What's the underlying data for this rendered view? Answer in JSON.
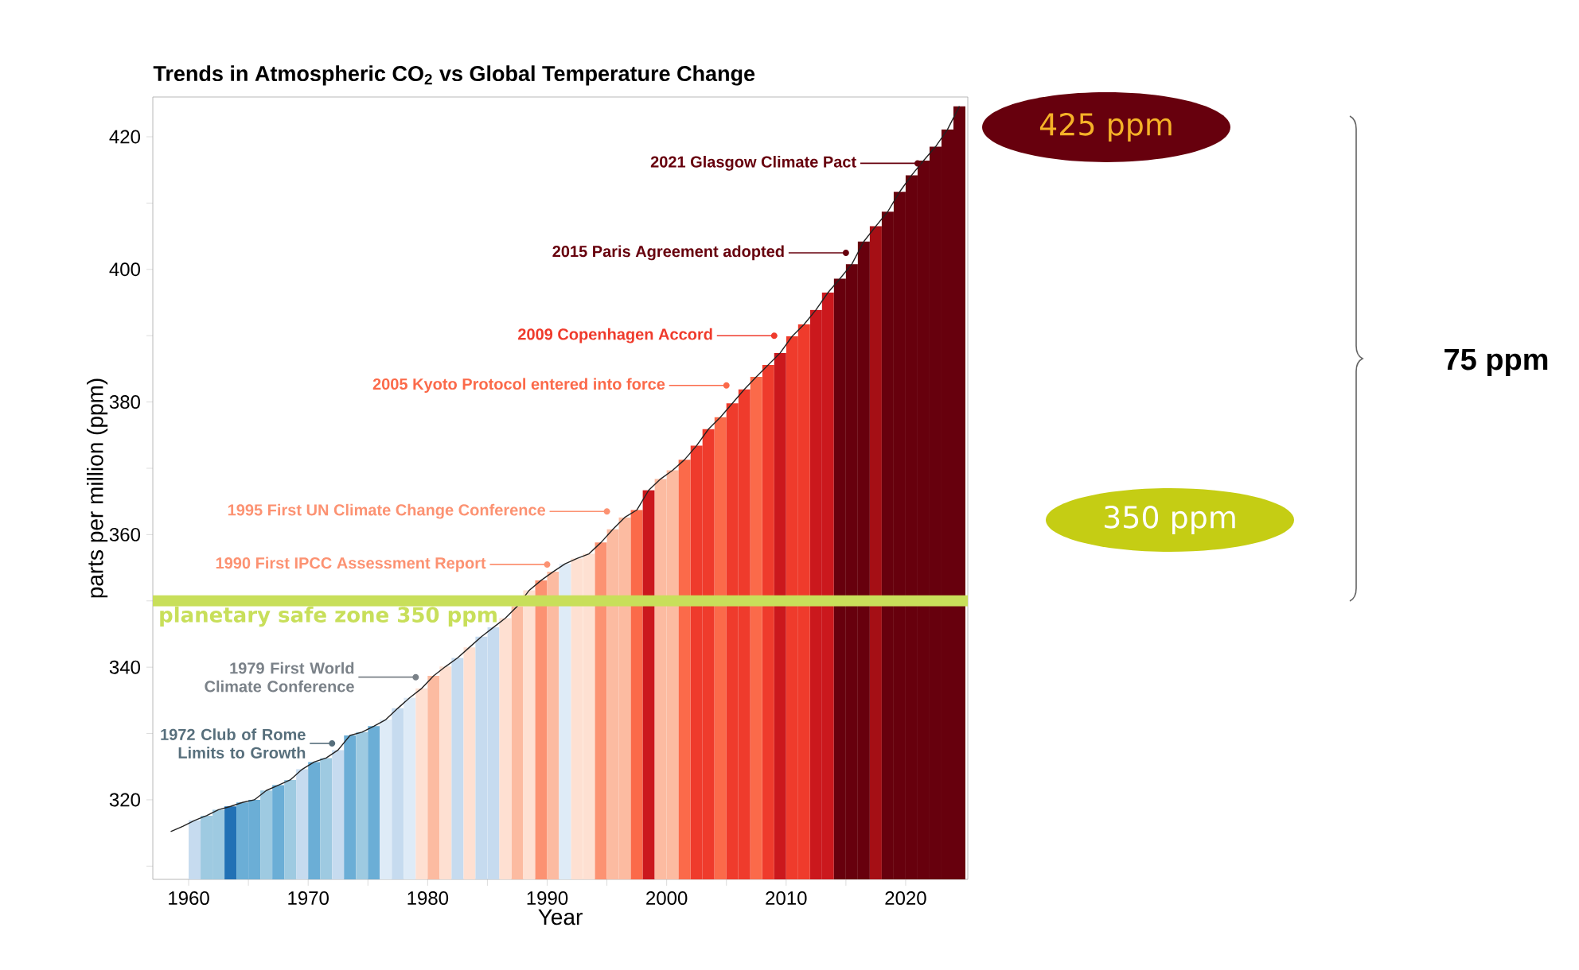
{
  "chart_data": {
    "type": "bar",
    "title": "Trends in Atmospheric CO$_{2}$ vs Global Temperature Change",
    "xlabel": "Year",
    "ylabel": "parts per million (ppm)",
    "xlim": [
      1957,
      2025.2
    ],
    "ylim": [
      308,
      426
    ],
    "xticks": [
      1960,
      {
        "value": 1965,
        "label": null
      },
      1970,
      {
        "value": 1975,
        "label": null
      },
      1980,
      {
        "value": 1985,
        "label": null
      },
      1990,
      {
        "value": 1995,
        "label": null
      },
      2000,
      {
        "value": 2005,
        "label": null
      },
      2010,
      {
        "value": 2015,
        "label": null
      },
      2020
    ],
    "yticks": [
      {
        "value": 310,
        "label": null
      },
      320,
      {
        "value": 330,
        "label": null
      },
      340,
      {
        "value": 350,
        "label": null
      },
      360,
      {
        "value": 370,
        "label": null
      },
      380,
      {
        "value": 390,
        "label": null
      },
      400,
      {
        "value": 410,
        "label": null
      },
      420
    ],
    "series": [
      {
        "x": [
          1960.5,
          1961.5,
          1962.5,
          1963.5,
          1964.5,
          1965.5,
          1966.5,
          1967.5,
          1968.5,
          1969.5,
          1970.5,
          1971.5,
          1972.5,
          1973.5,
          1974.5,
          1975.5,
          1976.5,
          1977.5,
          1978.5,
          1979.5,
          1980.5,
          1981.5,
          1982.5,
          1983.5,
          1984.5,
          1985.5,
          1986.5,
          1987.5,
          1988.5,
          1989.5,
          1990.5,
          1991.5,
          1992.5,
          1993.5,
          1994.5,
          1995.5,
          1996.5,
          1997.5,
          1998.5,
          1999.5,
          2000.5,
          2001.5,
          2002.5,
          2003.5,
          2004.5,
          2005.5,
          2006.5,
          2007.5,
          2008.5,
          2009.5,
          2010.5,
          2011.5,
          2012.5,
          2013.5,
          2014.5,
          2015.5,
          2016.5,
          2017.5,
          2018.5,
          2019.5,
          2020.5,
          2021.5,
          2022.5,
          2023.5,
          2024.5
        ],
        "values": [
          316.9,
          317.6,
          318.5,
          319.0,
          319.6,
          320.0,
          321.4,
          322.2,
          323.0,
          324.6,
          325.7,
          326.3,
          327.5,
          329.7,
          330.2,
          331.1,
          332.1,
          333.8,
          335.4,
          336.8,
          338.7,
          340.1,
          341.4,
          343.0,
          344.6,
          346.0,
          347.4,
          349.2,
          351.6,
          353.1,
          354.4,
          355.6,
          356.4,
          357.1,
          358.8,
          360.8,
          362.6,
          363.7,
          366.7,
          368.4,
          369.7,
          371.3,
          373.4,
          375.9,
          377.7,
          379.8,
          381.9,
          383.8,
          385.6,
          387.4,
          389.9,
          391.7,
          393.9,
          396.5,
          398.6,
          400.8,
          404.2,
          406.5,
          408.7,
          411.7,
          414.2,
          416.4,
          418.5,
          421.1,
          424.6
        ],
        "colors": [
          "#c6dbef",
          "#9ecae1",
          "#9ecae1",
          "#2171b5",
          "#6baed6",
          "#6baed6",
          "#9ecae1",
          "#6baed6",
          "#9ecae1",
          "#c6dbef",
          "#6baed6",
          "#9ecae1",
          "#c6dbef",
          "#6baed6",
          "#9ecae1",
          "#6baed6",
          "#deebf7",
          "#c6dbef",
          "#deebf7",
          "#fee0d2",
          "#fcbba1",
          "#fee0d2",
          "#c6dbef",
          "#fee0d2",
          "#c6dbef",
          "#c6dbef",
          "#fee0d2",
          "#fcbba1",
          "#fee0d2",
          "#fc9272",
          "#fcbba1",
          "#deebf7",
          "#fee0d2",
          "#fee0d2",
          "#fc9272",
          "#fcbba1",
          "#fcbba1",
          "#fb6a4a",
          "#cb181d",
          "#fcbba1",
          "#fcbba1",
          "#fb6a4a",
          "#ef3b2c",
          "#ef3b2c",
          "#fb6a4a",
          "#ef3b2c",
          "#ef3b2c",
          "#fb6a4a",
          "#ef3b2c",
          "#cb181d",
          "#ef3b2c",
          "#ef3b2c",
          "#cb181d",
          "#cb181d",
          "#67000d",
          "#67000d",
          "#67000d",
          "#a50f15",
          "#67000d",
          "#67000d",
          "#67000d",
          "#67000d",
          "#67000d",
          "#67000d",
          "#67000d"
        ]
      },
      {
        "type": "line",
        "color": "#222222",
        "marker": "none",
        "x": [
          1958.5,
          1959.5,
          1960.5,
          1961.5,
          1962.5,
          1963.5,
          1964.5,
          1965.5,
          1966.5,
          1967.5,
          1968.5,
          1969.5,
          1970.5,
          1971.5,
          1972.5,
          1973.5,
          1974.5,
          1975.5,
          1976.5,
          1977.5,
          1978.5,
          1979.5,
          1980.5,
          1981.5,
          1982.5,
          1983.5,
          1984.5,
          1985.5,
          1986.5,
          1987.5,
          1988.5,
          1989.5,
          1990.5,
          1991.5,
          1992.5,
          1993.5,
          1994.5,
          1995.5,
          1996.5,
          1997.5,
          1998.5,
          1999.5,
          2000.5,
          2001.5,
          2002.5,
          2003.5,
          2004.5,
          2005.5,
          2006.5,
          2007.5,
          2008.5,
          2009.5,
          2010.5,
          2011.5,
          2012.5,
          2013.5,
          2014.5,
          2015.5,
          2016.5,
          2017.5,
          2018.5,
          2019.5,
          2020.5,
          2021.5,
          2022.5,
          2023.5,
          2024.5
        ],
        "values": [
          315.2,
          316.0,
          316.9,
          317.6,
          318.5,
          319.0,
          319.6,
          320.0,
          321.4,
          322.2,
          323.0,
          324.6,
          325.7,
          326.3,
          327.5,
          329.7,
          330.2,
          331.1,
          332.1,
          333.8,
          335.4,
          336.8,
          338.7,
          340.1,
          341.4,
          343.0,
          344.6,
          346.0,
          347.4,
          349.2,
          351.6,
          353.1,
          354.4,
          355.6,
          356.4,
          357.1,
          358.8,
          360.8,
          362.6,
          363.7,
          366.7,
          368.4,
          369.7,
          371.3,
          373.4,
          375.9,
          377.7,
          379.8,
          381.9,
          383.8,
          385.6,
          387.4,
          389.9,
          391.7,
          393.9,
          396.5,
          398.6,
          400.8,
          404.2,
          406.5,
          408.7,
          411.7,
          414.2,
          416.4,
          418.5,
          421.1,
          424.6
        ]
      }
    ],
    "ref_lines": [
      {
        "axis": "y",
        "value": 350,
        "label": "planetary safe zone 350 ppm",
        "color": "#c8df5a"
      }
    ],
    "annotations": [
      {
        "text": "2021 Glasgow Climate Pact",
        "x": 2021,
        "y": 416
      },
      {
        "text": "2015 Paris Agreement adopted",
        "x": 2015,
        "y": 402.5
      },
      {
        "text": "2009 Copenhagen Accord",
        "x": 2009,
        "y": 390
      },
      {
        "text": "2005 Kyoto Protocol entered into force",
        "x": 2005,
        "y": 382.5
      },
      {
        "text": "1995 First UN Climate Change Conference",
        "x": 1995,
        "y": 363.5
      },
      {
        "text": "1990 First IPCC Assessment Report",
        "x": 1990,
        "y": 355.5
      },
      {
        "text": "1979 First World Climate Conference",
        "x": 1979,
        "y": 338.5
      },
      {
        "text": "1972 Club of Rome Limits to Growth",
        "x": 1972,
        "y": 328.5
      },
      "425 ppm",
      "350 ppm",
      "75 ppm"
    ]
  }
}
